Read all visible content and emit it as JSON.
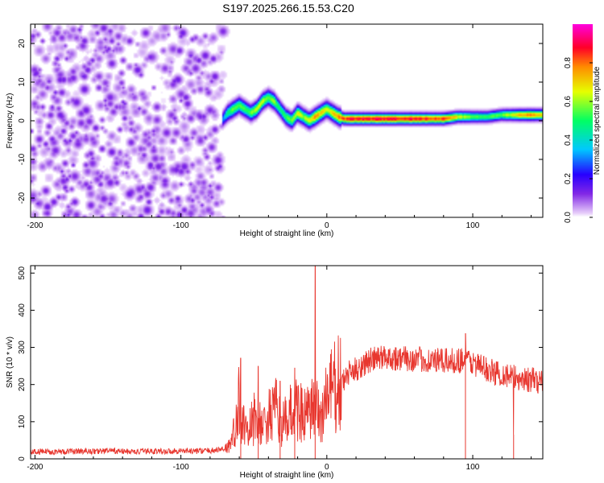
{
  "chart_data": [
    {
      "type": "heatmap",
      "title": "S197.2025.266.15.53.C20",
      "xlabel": "Height of straight line (km)",
      "ylabel": "Frequency (Hz)",
      "xlim": [
        -203,
        148
      ],
      "ylim": [
        -25,
        25
      ],
      "xticks": [
        "-200",
        "-100",
        "0",
        "100"
      ],
      "xtick_values": [
        -200,
        -100,
        0,
        100
      ],
      "yticks": [
        "20",
        "10",
        "0",
        "-10",
        "-20"
      ],
      "ytick_values": [
        20,
        10,
        0,
        -10,
        -20
      ],
      "colorbar": {
        "label": "Normalized spectral amplitude",
        "range": [
          0,
          1
        ],
        "ticks": [
          "0.0",
          "0.2",
          "0.4",
          "0.6",
          "0.8"
        ],
        "tick_values": [
          0.0,
          0.2,
          0.4,
          0.6,
          0.8
        ]
      },
      "noise_region": {
        "x_from": -203,
        "x_to": -72,
        "amplitude_range": [
          0.0,
          0.15
        ]
      },
      "ridge": {
        "x": [
          -72,
          -68,
          -64,
          -60,
          -56,
          -52,
          -48,
          -44,
          -40,
          -36,
          -32,
          -28,
          -24,
          -20,
          -16,
          -12,
          -8,
          -4,
          0,
          4,
          8,
          12,
          20,
          40,
          60,
          80,
          90,
          100,
          110,
          120,
          130,
          140,
          148
        ],
        "frequency": [
          0,
          2,
          3,
          4,
          3,
          2,
          3,
          5,
          6,
          5,
          3,
          1,
          0,
          2,
          1,
          0,
          1,
          2,
          3,
          2,
          1,
          0.5,
          0.5,
          0.5,
          0.5,
          0.5,
          1,
          1,
          1,
          1.5,
          1.5,
          1.5,
          1.5
        ],
        "amplitude": [
          0.3,
          0.5,
          0.6,
          0.6,
          0.55,
          0.6,
          0.65,
          0.7,
          0.6,
          0.65,
          0.5,
          0.55,
          0.6,
          0.7,
          0.65,
          0.7,
          0.85,
          0.75,
          0.7,
          0.75,
          0.85,
          0.9,
          0.95,
          0.95,
          0.95,
          0.9,
          0.7,
          0.6,
          0.55,
          0.6,
          0.75,
          0.85,
          0.7
        ]
      }
    },
    {
      "type": "line",
      "title": "",
      "xlabel": "Height of straight line (km)",
      "ylabel": "SNR (10 * v/v)",
      "xlim": [
        -203,
        148
      ],
      "ylim": [
        0,
        520
      ],
      "xticks": [
        "-200",
        "-100",
        "0",
        "100"
      ],
      "xtick_values": [
        -200,
        -100,
        0,
        100
      ],
      "yticks": [
        "0",
        "100",
        "200",
        "300",
        "400",
        "500"
      ],
      "ytick_values": [
        0,
        100,
        200,
        300,
        400,
        500
      ],
      "series": [
        {
          "name": "SNR",
          "color": "#e8372f",
          "x": [
            -203,
            -190,
            -180,
            -170,
            -160,
            -150,
            -140,
            -130,
            -120,
            -110,
            -100,
            -90,
            -80,
            -75,
            -70,
            -66,
            -62,
            -60,
            -58,
            -55,
            -52,
            -48,
            -45,
            -40,
            -35,
            -30,
            -25,
            -20,
            -15,
            -10,
            -8,
            -6,
            -4,
            -2,
            0,
            5,
            10,
            15,
            20,
            25,
            30,
            35,
            40,
            50,
            60,
            70,
            80,
            90,
            95,
            100,
            105,
            110,
            115,
            120,
            125,
            130,
            140,
            148
          ],
          "values": [
            18,
            20,
            19,
            21,
            20,
            22,
            20,
            19,
            21,
            20,
            22,
            21,
            22,
            24,
            28,
            40,
            90,
            160,
            110,
            60,
            90,
            120,
            80,
            110,
            130,
            90,
            120,
            140,
            110,
            130,
            150,
            120,
            110,
            140,
            170,
            190,
            200,
            230,
            240,
            255,
            265,
            270,
            275,
            270,
            268,
            265,
            262,
            265,
            270,
            258,
            250,
            240,
            232,
            230,
            222,
            218,
            212,
            208
          ],
          "spikes": [
            {
              "x": -59,
              "value": 272
            },
            {
              "x": -47,
              "value": 250
            },
            {
              "x": -32,
              "value": 210
            },
            {
              "x": -22,
              "value": 245
            },
            {
              "x": -8,
              "value": 520
            },
            {
              "x": 95,
              "value": 338
            },
            {
              "x": 128,
              "value": 65
            }
          ]
        }
      ]
    }
  ]
}
